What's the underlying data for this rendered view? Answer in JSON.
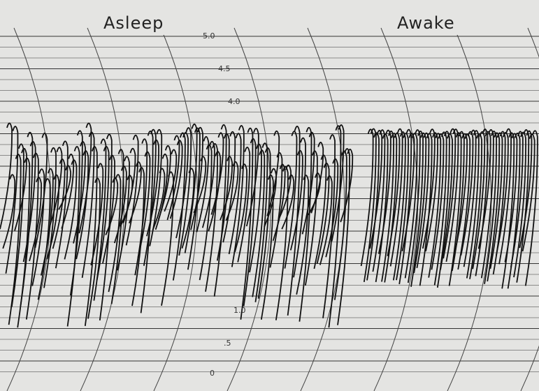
{
  "labels": {
    "left": "Asleep",
    "right": "Awake"
  },
  "scale_labels": [
    "5.0",
    "4.5",
    "4.0",
    "1.0",
    ".5",
    "0"
  ]
}
